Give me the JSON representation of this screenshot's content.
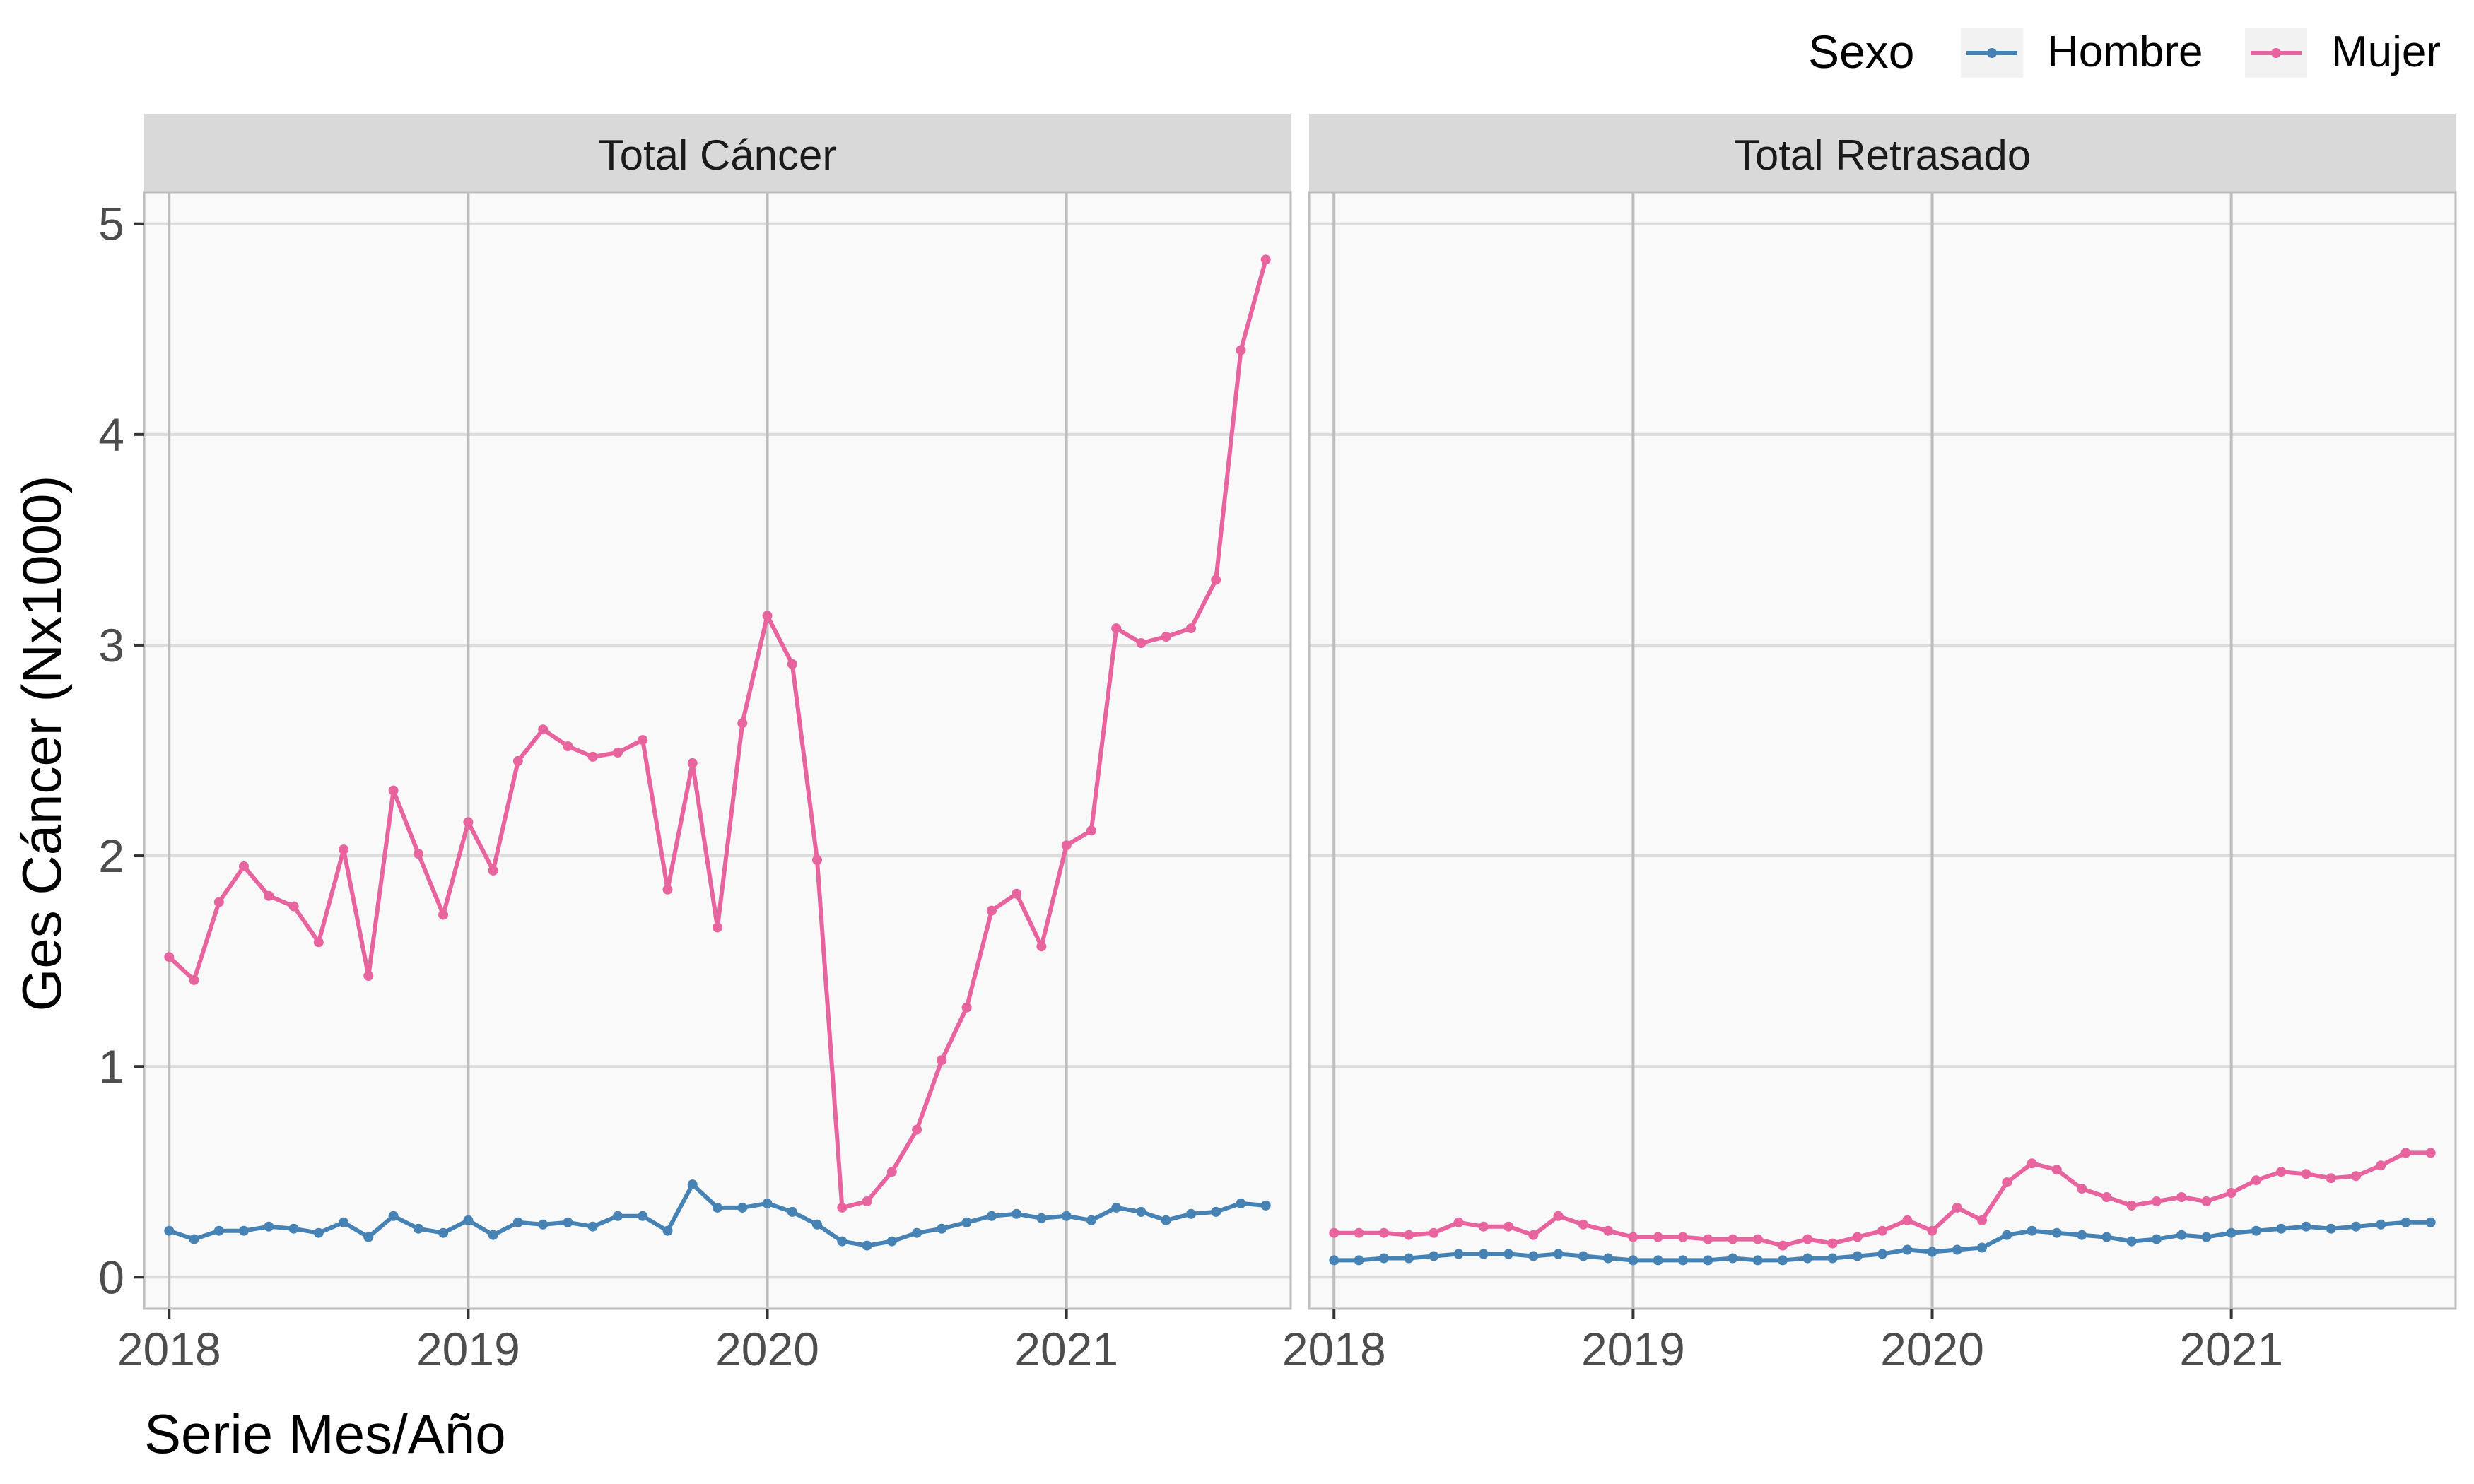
{
  "legend": {
    "title": "Sexo",
    "items": [
      {
        "label": "Hombre",
        "color": "#4682B4"
      },
      {
        "label": "Mujer",
        "color": "#E8649E"
      }
    ]
  },
  "axes": {
    "ylabel": "Ges Cáncer (Nx1000)",
    "xlabel": "Serie Mes/Año"
  },
  "chart_data": [
    {
      "type": "line",
      "title": "Total Cáncer",
      "x_start": "2018-01",
      "x_step": "1 month",
      "xticks": [
        "2018",
        "2019",
        "2020",
        "2021"
      ],
      "yticks": [
        0,
        1,
        2,
        3,
        4,
        5
      ],
      "xlim": [
        "2017-12",
        "2021-10"
      ],
      "ylim": [
        -0.15,
        5.15
      ],
      "grid": true,
      "series": [
        {
          "name": "Hombre",
          "color": "#4682B4",
          "values": [
            0.22,
            0.18,
            0.22,
            0.22,
            0.24,
            0.23,
            0.21,
            0.26,
            0.19,
            0.29,
            0.23,
            0.21,
            0.27,
            0.2,
            0.26,
            0.25,
            0.26,
            0.24,
            0.29,
            0.29,
            0.22,
            0.44,
            0.33,
            0.33,
            0.35,
            0.31,
            0.25,
            0.17,
            0.15,
            0.17,
            0.21,
            0.23,
            0.26,
            0.29,
            0.3,
            0.28,
            0.29,
            0.27,
            0.33,
            0.31,
            0.27,
            0.3,
            0.31,
            0.35,
            0.34
          ]
        },
        {
          "name": "Mujer",
          "color": "#E8649E",
          "values": [
            1.52,
            1.41,
            1.78,
            1.95,
            1.81,
            1.76,
            1.59,
            2.03,
            1.43,
            2.31,
            2.01,
            1.72,
            2.16,
            1.93,
            2.45,
            2.6,
            2.52,
            2.47,
            2.49,
            2.55,
            1.84,
            2.44,
            1.66,
            2.63,
            3.14,
            2.91,
            1.98,
            0.33,
            0.36,
            0.5,
            0.7,
            1.03,
            1.28,
            1.74,
            1.82,
            1.57,
            2.05,
            2.12,
            3.08,
            3.01,
            3.04,
            3.08,
            3.31,
            4.4,
            4.83
          ]
        }
      ]
    },
    {
      "type": "line",
      "title": "Total Retrasado",
      "x_start": "2018-01",
      "x_step": "1 month",
      "xticks": [
        "2018",
        "2019",
        "2020",
        "2021"
      ],
      "yticks": [
        0,
        1,
        2,
        3,
        4,
        5
      ],
      "xlim": [
        "2017-12",
        "2021-10"
      ],
      "ylim": [
        -0.15,
        5.15
      ],
      "grid": true,
      "series": [
        {
          "name": "Hombre",
          "color": "#4682B4",
          "values": [
            0.08,
            0.08,
            0.09,
            0.09,
            0.1,
            0.11,
            0.11,
            0.11,
            0.1,
            0.11,
            0.1,
            0.09,
            0.08,
            0.08,
            0.08,
            0.08,
            0.09,
            0.08,
            0.08,
            0.09,
            0.09,
            0.1,
            0.11,
            0.13,
            0.12,
            0.13,
            0.14,
            0.2,
            0.22,
            0.21,
            0.2,
            0.19,
            0.17,
            0.18,
            0.2,
            0.19,
            0.21,
            0.22,
            0.23,
            0.24,
            0.23,
            0.24,
            0.25,
            0.26,
            0.26
          ]
        },
        {
          "name": "Mujer",
          "color": "#E8649E",
          "values": [
            0.21,
            0.21,
            0.21,
            0.2,
            0.21,
            0.26,
            0.24,
            0.24,
            0.2,
            0.29,
            0.25,
            0.22,
            0.19,
            0.19,
            0.19,
            0.18,
            0.18,
            0.18,
            0.15,
            0.18,
            0.16,
            0.19,
            0.22,
            0.27,
            0.22,
            0.33,
            0.27,
            0.45,
            0.54,
            0.51,
            0.42,
            0.38,
            0.34,
            0.36,
            0.38,
            0.36,
            0.4,
            0.46,
            0.5,
            0.49,
            0.47,
            0.48,
            0.53,
            0.59,
            0.59
          ]
        }
      ]
    }
  ]
}
